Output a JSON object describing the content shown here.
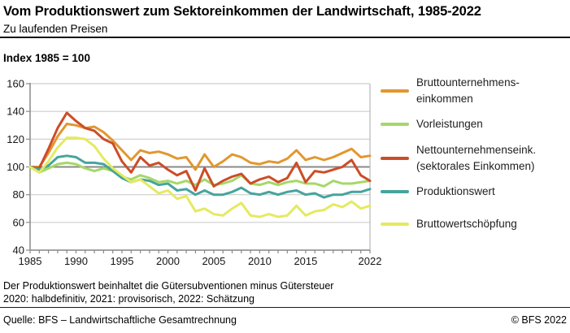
{
  "page": {
    "title": "Vom Produktionswert zum Sektoreinkommen der Landwirtschaft, 1985-2022",
    "subtitle": "Zu laufenden Preisen",
    "index_label": "Index 1985 = 100",
    "footnote_line1": "Der Produktionswert beinhaltet die Gütersubventionen minus Gütersteuer",
    "footnote_line2": "2020: halbdefinitiv, 2021: provisorisch, 2022: Schätzung",
    "source": "Quelle: BFS – Landwirtschaftliche Gesamtrechnung",
    "copyright": "© BFS 2022"
  },
  "colors": {
    "grid": "#cdcdcd",
    "baseline_grid": "#8a8a8a",
    "axis": "#8a8a8a",
    "right_border": "#b8b8b8",
    "tick_text": "#161616"
  },
  "chart_data": {
    "type": "line",
    "title": "Vom Produktionswert zum Sektoreinkommen der Landwirtschaft, 1985-2022",
    "subtitle": "Zu laufenden Preisen",
    "ylabel": "Index 1985 = 100",
    "xlabel": "",
    "ylim": [
      40,
      160
    ],
    "yticks": [
      40,
      60,
      80,
      100,
      120,
      140,
      160
    ],
    "xticks": [
      1985,
      1990,
      1995,
      2000,
      2005,
      2010,
      2015,
      2022
    ],
    "baseline": 100,
    "grid": true,
    "legend_position": "right",
    "x": [
      1985,
      1986,
      1987,
      1988,
      1989,
      1990,
      1991,
      1992,
      1993,
      1994,
      1995,
      1996,
      1997,
      1998,
      1999,
      2000,
      2001,
      2002,
      2003,
      2004,
      2005,
      2006,
      2007,
      2008,
      2009,
      2010,
      2011,
      2012,
      2013,
      2014,
      2015,
      2016,
      2017,
      2018,
      2019,
      2020,
      2021,
      2022
    ],
    "series": [
      {
        "name": "Bruttounternehmens-\neinkommen",
        "color": "#E2972F",
        "values": [
          100,
          100,
          110,
          122,
          131,
          130,
          128,
          129,
          125,
          119,
          112,
          105,
          112,
          110,
          111,
          109,
          106,
          107,
          98,
          109,
          100,
          104,
          109,
          107,
          103,
          102,
          104,
          103,
          106,
          112,
          105,
          107,
          105,
          107,
          110,
          113,
          107,
          108
        ]
      },
      {
        "name": "Vorleistungen",
        "color": "#A5D867",
        "values": [
          100,
          96,
          99,
          102,
          103,
          102,
          99,
          97,
          99,
          97,
          93,
          91,
          94,
          92,
          89,
          90,
          88,
          90,
          87,
          91,
          87,
          88,
          90,
          94,
          88,
          87,
          89,
          87,
          89,
          90,
          88,
          88,
          86,
          90,
          88,
          88,
          89,
          90
        ]
      },
      {
        "name": "Nettounternehmenseink.\n(sektorales Einkommen)",
        "color": "#CC4D27",
        "values": [
          100,
          99,
          113,
          128,
          139,
          133,
          128,
          126,
          120,
          117,
          104,
          96,
          107,
          101,
          103,
          98,
          94,
          97,
          83,
          99,
          86,
          90,
          93,
          95,
          88,
          91,
          93,
          89,
          92,
          103,
          89,
          97,
          96,
          98,
          100,
          105,
          94,
          90
        ]
      },
      {
        "name": "Produktionswert",
        "color": "#46A49E",
        "values": [
          100,
          98,
          101,
          107,
          108,
          107,
          103,
          103,
          102,
          97,
          92,
          89,
          91,
          90,
          87,
          88,
          83,
          84,
          80,
          83,
          80,
          80,
          82,
          85,
          81,
          80,
          82,
          80,
          82,
          83,
          80,
          81,
          78,
          80,
          80,
          82,
          82,
          84
        ]
      },
      {
        "name": "Bruttowertschöpfung",
        "color": "#E4EA5F",
        "values": [
          100,
          96,
          104,
          114,
          121,
          121,
          120,
          115,
          106,
          99,
          94,
          89,
          91,
          86,
          81,
          83,
          77,
          79,
          68,
          70,
          66,
          65,
          70,
          74,
          65,
          64,
          66,
          64,
          65,
          72,
          65,
          68,
          69,
          73,
          71,
          75,
          70,
          72
        ]
      }
    ]
  }
}
